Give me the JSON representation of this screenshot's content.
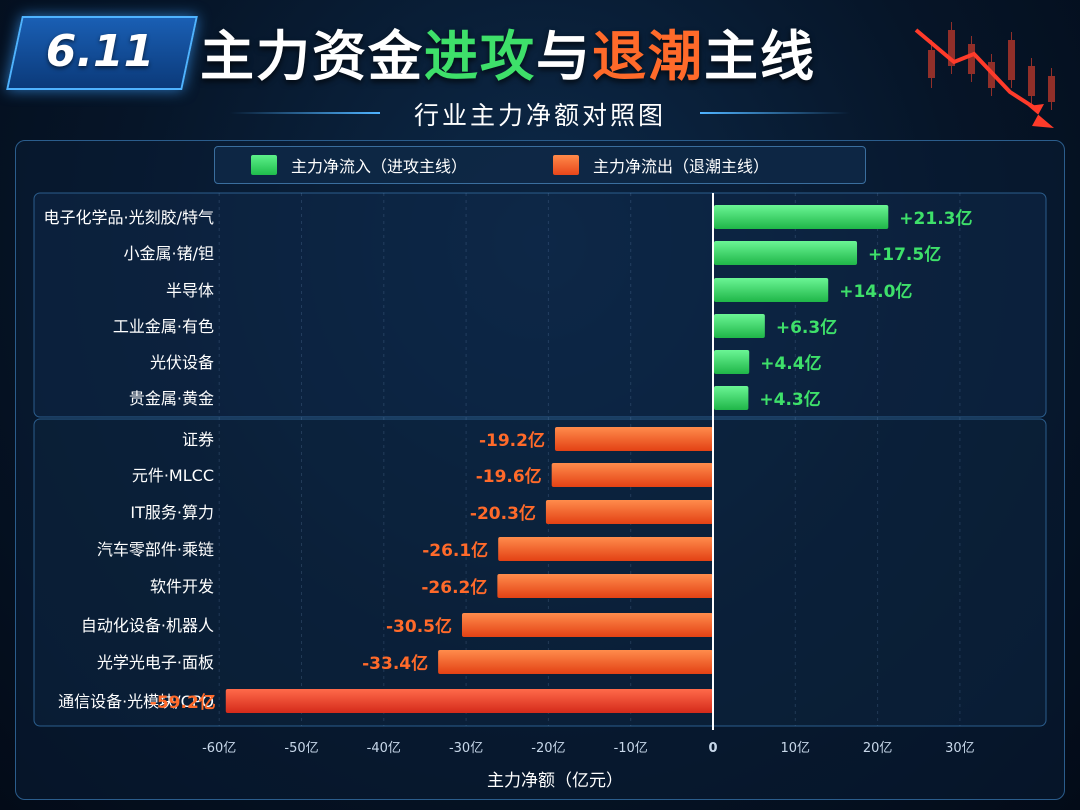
{
  "header": {
    "date": "6.11",
    "title_parts": [
      {
        "text": "主力资金",
        "tone": "white"
      },
      {
        "text": "进攻",
        "tone": "green"
      },
      {
        "text": "与",
        "tone": "white"
      },
      {
        "text": "退潮",
        "tone": "orange"
      },
      {
        "text": "主线",
        "tone": "white"
      }
    ],
    "subtitle": "行业主力净额对照图"
  },
  "colors": {
    "inflow": "#2fd35c",
    "outflow": "#ff5a22",
    "inflow_text": "#3ee06a",
    "outflow_text": "#ff6a2a",
    "panel_border": "#2b5d8c"
  },
  "legend": {
    "inflow_label": "主力净流入（进攻主线）",
    "outflow_label": "主力净流出（退潮主线）"
  },
  "chart_data": {
    "type": "bar",
    "orientation": "horizontal",
    "title": "主力资金进攻与退潮主线",
    "subtitle": "行业主力净额对照图",
    "xlabel": "主力净额（亿元）",
    "ylabel": "",
    "unit": "亿",
    "xlim": [
      -60,
      30
    ],
    "xticks": [
      -60,
      -50,
      -40,
      -30,
      -20,
      -10,
      0,
      10,
      20,
      30
    ],
    "tick_labels": [
      "-60亿",
      "-50亿",
      "-40亿",
      "-30亿",
      "-20亿",
      "-10亿",
      "0",
      "10亿",
      "20亿",
      "30亿"
    ],
    "legend_position": "top-center",
    "grid": true,
    "categories": [
      "电子化学品·光刻胶/特气",
      "小金属·锗/钽",
      "半导体",
      "工业金属·有色",
      "光伏设备",
      "贵金属·黄金",
      "证券",
      "元件·MLCC",
      "IT服务·算力",
      "汽车零部件·乘链",
      "软件开发",
      "自动化设备·机器人",
      "光学光电子·面板",
      "通信设备·光模块/CPO"
    ],
    "values": [
      21.3,
      17.5,
      14.0,
      6.3,
      4.4,
      4.3,
      -19.2,
      -19.6,
      -20.3,
      -26.1,
      -26.2,
      -30.5,
      -33.4,
      -59.2
    ],
    "value_labels": [
      "+21.3亿",
      "+17.5亿",
      "+14.0亿",
      "+6.3亿",
      "+4.4亿",
      "+4.3亿",
      "-19.2亿",
      "-19.6亿",
      "-20.3亿",
      "-26.1亿",
      "-26.2亿",
      "-30.5亿",
      "-33.4亿",
      "-59.2亿"
    ]
  }
}
